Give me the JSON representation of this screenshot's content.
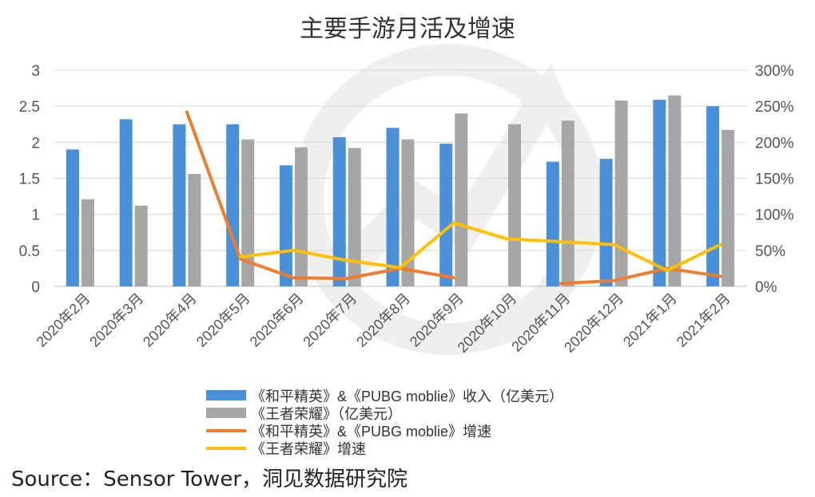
{
  "chart_data": {
    "type": "bar",
    "title": "主要手游月活及增速",
    "categories": [
      "2020年2月",
      "2020年3月",
      "2020年4月",
      "2020年5月",
      "2020年6月",
      "2020年7月",
      "2020年8月",
      "2020年9月",
      "2020年10月",
      "2020年11月",
      "2020年12月",
      "2021年1月",
      "2021年2月"
    ],
    "y_left": {
      "ylim": [
        0,
        3
      ],
      "ticks": [
        "0",
        "0.5",
        "1",
        "1.5",
        "2",
        "2.5",
        "3"
      ]
    },
    "y_right": {
      "ylim": [
        0,
        3
      ],
      "ticks": [
        "0%",
        "50%",
        "100%",
        "150%",
        "200%",
        "250%",
        "300%"
      ]
    },
    "series": [
      {
        "name": "《和平精英》&《PUBG moblie》收入（亿美元）",
        "type": "bar",
        "axis": "left",
        "color": "#4A90D9",
        "values": [
          1.9,
          2.32,
          2.25,
          2.25,
          1.68,
          2.07,
          2.2,
          1.98,
          null,
          1.73,
          1.77,
          2.59,
          2.5
        ]
      },
      {
        "name": "《王者荣耀》（亿美元）",
        "type": "bar",
        "axis": "left",
        "color": "#A6A6A6",
        "values": [
          1.21,
          1.12,
          1.56,
          2.04,
          1.93,
          1.92,
          2.04,
          2.4,
          2.25,
          2.3,
          2.58,
          2.65,
          2.17
        ]
      },
      {
        "name": "《和平精英》&《PUBG moblie》增速",
        "type": "line",
        "axis": "right",
        "color": "#ED7D31",
        "values": [
          null,
          null,
          2.42,
          0.38,
          0.12,
          0.11,
          0.25,
          0.12,
          null,
          0.04,
          0.08,
          0.25,
          0.14
        ]
      },
      {
        "name": "《王者荣耀》增速",
        "type": "line",
        "axis": "right",
        "color": "#FFC000",
        "values": [
          null,
          null,
          null,
          0.41,
          0.5,
          0.36,
          0.26,
          0.88,
          0.66,
          0.62,
          0.58,
          0.22,
          0.58
        ]
      }
    ],
    "grid": true,
    "legend_position": "bottom"
  },
  "source_text": "Source：Sensor Tower，洞见数据研究院"
}
